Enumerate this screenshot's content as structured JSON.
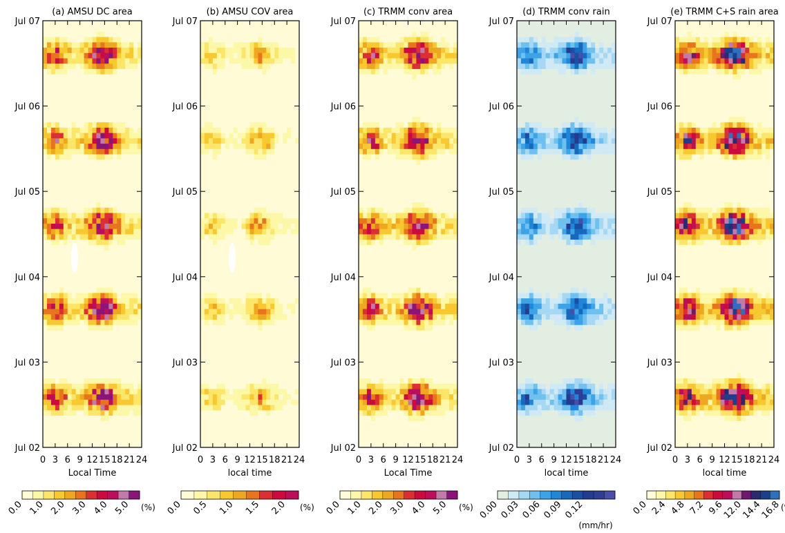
{
  "panels": [
    {
      "id": "a",
      "title": "(a) AMSU DC area",
      "xlabel": "Local Time",
      "unit": "(%)",
      "colorbar_labels": [
        "0.0",
        "1.0",
        "2.0",
        "3.0",
        "4.0",
        "5.0"
      ],
      "colors": [
        "#fefbd6",
        "#fdf7a8",
        "#fbe66a",
        "#f7c830",
        "#eea720",
        "#e8751e",
        "#dc2f33",
        "#cc0a3d",
        "#bb0f5b",
        "#c27aa8",
        "#8b1478"
      ],
      "show_ylabels": true,
      "seed": 11,
      "blank_marks": [
        [
          3.3,
          6.78,
          0.4,
          0.28
        ],
        [
          7.7,
          2.22,
          0.45,
          0.35
        ]
      ]
    },
    {
      "id": "b",
      "title": "(b) AMSU COV area",
      "xlabel": "local time",
      "unit": "(%)",
      "colorbar_labels": [
        "0.0",
        "0.5",
        "1.0",
        "1.5",
        "2.0"
      ],
      "colors": [
        "#fefbd6",
        "#fdf7a8",
        "#fbe66a",
        "#f7c830",
        "#eea720",
        "#e8751e",
        "#dc2f33",
        "#cc0a3d",
        "#bb0f5b"
      ],
      "show_ylabels": true,
      "seed": 23,
      "blank_marks": [
        [
          3.3,
          6.78,
          0.4,
          0.28
        ],
        [
          7.7,
          2.22,
          0.45,
          0.35
        ]
      ]
    },
    {
      "id": "c",
      "title": "(c) TRMM conv area",
      "xlabel": "Local Time",
      "unit": "(%)",
      "colorbar_labels": [
        "0.0",
        "1.0",
        "2.0",
        "3.0",
        "4.0",
        "5.0"
      ],
      "colors": [
        "#fefbd6",
        "#fdf7a8",
        "#fbe66a",
        "#f7c830",
        "#eea720",
        "#e8751e",
        "#dc2f33",
        "#cc0a3d",
        "#bb0f5b",
        "#c27aa8",
        "#8b1478"
      ],
      "show_ylabels": true,
      "seed": 37,
      "blank_marks": []
    },
    {
      "id": "d",
      "title": "(d) TRMM conv rain",
      "xlabel": "local time",
      "unit": "(mm/hr)",
      "colorbar_labels": [
        "0.00",
        "0.03",
        "0.06",
        "0.09",
        "0.12"
      ],
      "colors": [
        "#e3eee2",
        "#cfe9f5",
        "#a6d8f3",
        "#6ec0ee",
        "#3ca3e6",
        "#1f86d8",
        "#1769be",
        "#1b4fa4",
        "#243b8f",
        "#2f3d96",
        "#4a4ea8"
      ],
      "show_ylabels": true,
      "seed": 53,
      "blank_marks": []
    },
    {
      "id": "e",
      "title": "(e) TRMM C+S rain area",
      "xlabel": "local time",
      "unit": "(%)",
      "colorbar_labels": [
        "0.0",
        "2.4",
        "4.8",
        "7.2",
        "9.6",
        "12.0",
        "14.4",
        "16.8"
      ],
      "colors": [
        "#fefbd6",
        "#fdf7a8",
        "#fbe66a",
        "#f7c830",
        "#eea720",
        "#e8751e",
        "#dc2f33",
        "#cc0a3d",
        "#bb0f5b",
        "#c27aa8",
        "#6d1a6e",
        "#2a2a6e",
        "#1c3f8c",
        "#2f6fc0"
      ],
      "show_ylabels": true,
      "seed": 71,
      "blank_marks": []
    }
  ],
  "chart_data": [
    {
      "type": "heatmap",
      "title": "(a) AMSU DC area",
      "xlabel": "Local Time",
      "x_tick_labels": [
        "0",
        "3",
        "6",
        "9",
        "12",
        "15",
        "18",
        "21",
        "24"
      ],
      "y_tick_labels": [
        "Jul 02",
        "Jul 03",
        "Jul 04",
        "Jul 05",
        "Jul 06",
        "Jul 07"
      ],
      "xlim": [
        0,
        24
      ],
      "colorbar": {
        "unit": "(%)",
        "labels": [
          "0.0",
          "1.0",
          "2.0",
          "3.0",
          "4.0",
          "5.0"
        ],
        "range": [
          0,
          5.5
        ]
      }
    },
    {
      "type": "heatmap",
      "title": "(b) AMSU COV area",
      "xlabel": "local time",
      "x_tick_labels": [
        "0",
        "3",
        "6",
        "9",
        "12",
        "15",
        "18",
        "21",
        "24"
      ],
      "y_tick_labels": [
        "Jul 02",
        "Jul 03",
        "Jul 04",
        "Jul 05",
        "Jul 06",
        "Jul 07"
      ],
      "xlim": [
        0,
        24
      ],
      "colorbar": {
        "unit": "(%)",
        "labels": [
          "0.0",
          "0.5",
          "1.0",
          "1.5",
          "2.0"
        ],
        "range": [
          0,
          2.0
        ]
      }
    },
    {
      "type": "heatmap",
      "title": "(c) TRMM conv area",
      "xlabel": "Local Time",
      "x_tick_labels": [
        "0",
        "3",
        "6",
        "9",
        "12",
        "15",
        "18",
        "21",
        "24"
      ],
      "y_tick_labels": [
        "Jul 02",
        "Jul 03",
        "Jul 04",
        "Jul 05",
        "Jul 06",
        "Jul 07"
      ],
      "xlim": [
        0,
        24
      ],
      "colorbar": {
        "unit": "(%)",
        "labels": [
          "0.0",
          "1.0",
          "2.0",
          "3.0",
          "4.0",
          "5.0"
        ],
        "range": [
          0,
          5.5
        ]
      }
    },
    {
      "type": "heatmap",
      "title": "(d) TRMM conv rain",
      "xlabel": "local time",
      "x_tick_labels": [
        "0",
        "3",
        "6",
        "9",
        "12",
        "15",
        "18",
        "21",
        "24"
      ],
      "y_tick_labels": [
        "Jul 02",
        "Jul 03",
        "Jul 04",
        "Jul 05",
        "Jul 06",
        "Jul 07"
      ],
      "xlim": [
        0,
        24
      ],
      "colorbar": {
        "unit": "(mm/hr)",
        "labels": [
          "0.00",
          "0.03",
          "0.06",
          "0.09",
          "0.12"
        ],
        "range": [
          0,
          0.15
        ]
      }
    },
    {
      "type": "heatmap",
      "title": "(e) TRMM C+S rain area",
      "xlabel": "local time",
      "x_tick_labels": [
        "0",
        "3",
        "6",
        "9",
        "12",
        "15",
        "18",
        "21",
        "24"
      ],
      "y_tick_labels": [
        "Jul 02",
        "Jul 03",
        "Jul 04",
        "Jul 05",
        "Jul 06",
        "Jul 07"
      ],
      "xlim": [
        0,
        24
      ],
      "colorbar": {
        "unit": "(%)",
        "labels": [
          "0.0",
          "2.4",
          "4.8",
          "7.2",
          "9.6",
          "12.0",
          "14.4",
          "16.8"
        ],
        "range": [
          0,
          16.8
        ]
      }
    }
  ],
  "axes": {
    "x_tick_labels": [
      "0",
      "3",
      "6",
      "9",
      "12",
      "15",
      "18",
      "21",
      "24"
    ],
    "y_tick_labels": [
      "Jul 02",
      "Jul 03",
      "Jul 04",
      "Jul 05",
      "Jul 06",
      "Jul 07"
    ]
  }
}
